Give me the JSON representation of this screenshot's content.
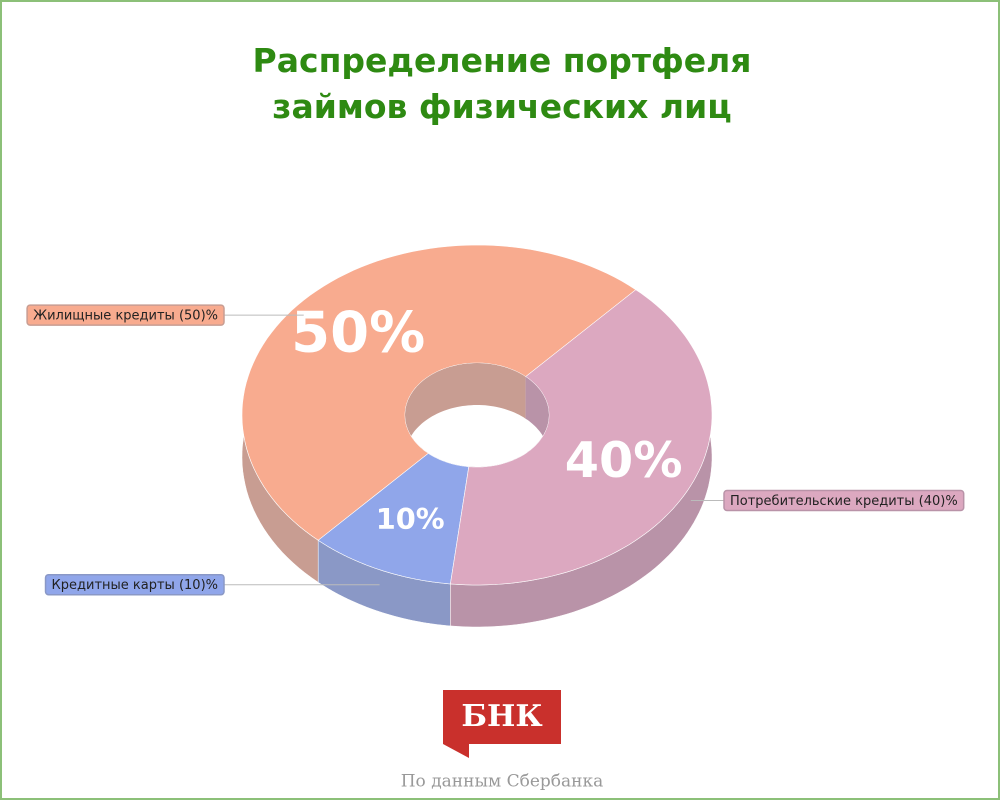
{
  "chart_data": {
    "type": "donut3d",
    "title": "Распределение портфеля займов физических лиц",
    "categories": [
      "Жилищные кредиты (50)%",
      "Кредитные карты (10)%",
      "Потребительские кредиты (40)%"
    ],
    "values": [
      50,
      10,
      40
    ],
    "value_labels": [
      "50%",
      "10%",
      "40%"
    ],
    "colors": [
      "#f8ab8f",
      "#90a6ea",
      "#dca8c0"
    ],
    "side_colors": [
      "#c89d92",
      "#8a98c6",
      "#b993a8"
    ],
    "logo": "БНК",
    "source": "По данным Сбербанка"
  }
}
